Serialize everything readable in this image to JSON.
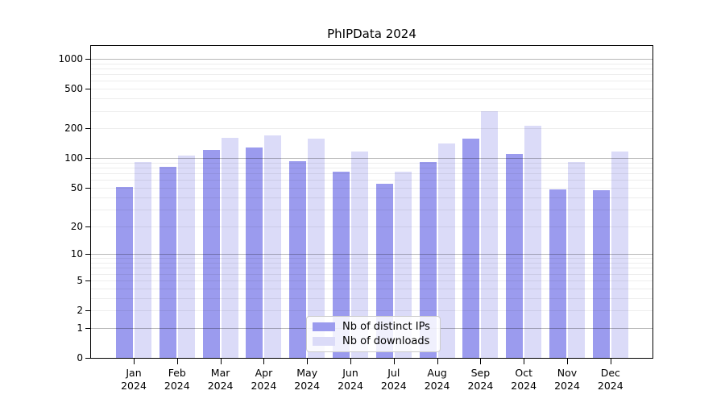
{
  "title": "PhIPData 2024",
  "chart_data": {
    "type": "bar",
    "title": "PhIPData 2024",
    "scale": "log1p",
    "categories": [
      "Jan",
      "Feb",
      "Mar",
      "Apr",
      "May",
      "Jun",
      "Jul",
      "Aug",
      "Sep",
      "Oct",
      "Nov",
      "Dec"
    ],
    "category_year": "2024",
    "series": [
      {
        "name": "Nb of distinct IPs",
        "color": "#9b9bee",
        "values": [
          51,
          81,
          122,
          128,
          94,
          73,
          55,
          91,
          158,
          110,
          48,
          47
        ]
      },
      {
        "name": "Nb of downloads",
        "color": "#dbdbf8",
        "values": [
          92,
          106,
          162,
          170,
          157,
          117,
          73,
          142,
          300,
          214,
          91,
          117
        ]
      }
    ],
    "y_ticks": [
      1000,
      500,
      200,
      100,
      50,
      20,
      10,
      5,
      2,
      1,
      0
    ],
    "ylim": [
      0,
      1350
    ],
    "grid": {
      "major_lines": [
        1,
        10,
        100,
        1000
      ],
      "minor_decades": [
        1,
        10,
        100
      ]
    },
    "legend_position": "inside-bottom-center",
    "xlabel": "",
    "ylabel": ""
  }
}
